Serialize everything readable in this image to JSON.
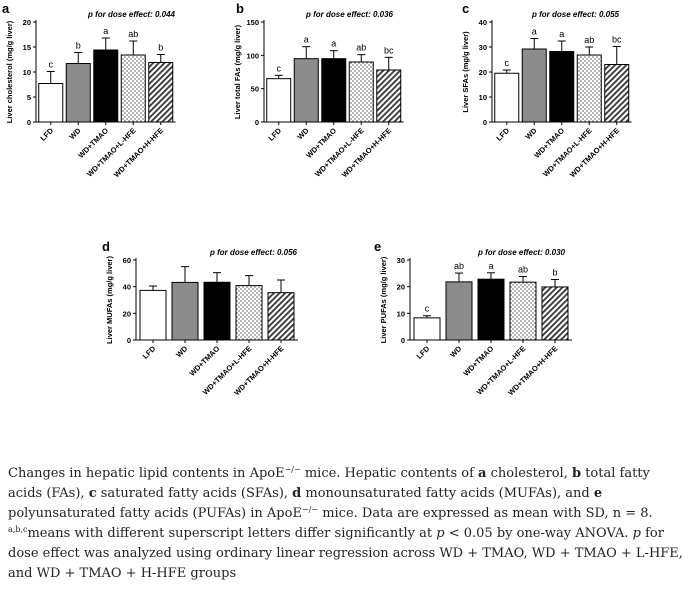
{
  "chart_data": [
    {
      "type": "bar",
      "panel_label": "a",
      "title": "p for dose effect: 0.044",
      "ylabel": "Liver cholesterol (mg/g liver)",
      "ylim": [
        0,
        20
      ],
      "yticks": [
        0,
        5,
        10,
        15,
        20
      ],
      "categories": [
        "LFD",
        "WD",
        "WD+TMAO",
        "WD+TMAO+L-HFE",
        "WD+TMAO+H-HFE"
      ],
      "values": [
        7.7,
        11.7,
        14.4,
        13.4,
        11.9
      ],
      "errors": [
        2.4,
        2.2,
        2.4,
        2.8,
        1.6
      ],
      "letters": [
        "c",
        "b",
        "a",
        "ab",
        "b"
      ]
    },
    {
      "type": "bar",
      "panel_label": "b",
      "title": "p for dose effect: 0.036",
      "ylabel": "Liver total FAs (mg/g liver)",
      "ylim": [
        0,
        150
      ],
      "yticks": [
        0,
        50,
        100,
        150
      ],
      "categories": [
        "LFD",
        "WD",
        "WD+TMAO",
        "WD+TMAO+L-HFE",
        "WD+TMAO+H-HFE"
      ],
      "values": [
        65,
        95,
        95,
        90,
        78
      ],
      "errors": [
        5,
        18,
        12,
        11,
        19
      ],
      "letters": [
        "c",
        "a",
        "a",
        "ab",
        "bc"
      ]
    },
    {
      "type": "bar",
      "panel_label": "c",
      "title": "p for dose effect: 0.055",
      "ylabel": "Liver SFAs (mg/g liver)",
      "ylim": [
        0,
        40
      ],
      "yticks": [
        0,
        10,
        20,
        30,
        40
      ],
      "categories": [
        "LFD",
        "WD",
        "WD+TMAO",
        "WD+TMAO+L-HFE",
        "WD+TMAO+H-HFE"
      ],
      "values": [
        19.5,
        29.2,
        28.2,
        26.8,
        23.0
      ],
      "errors": [
        1.3,
        4.2,
        4.2,
        3.2,
        7.2
      ],
      "letters": [
        "c",
        "a",
        "a",
        "ab",
        "bc"
      ]
    },
    {
      "type": "bar",
      "panel_label": "d",
      "title": "p for dose effect: 0.056",
      "ylabel": "Liver MUFAs (mg/g liver)",
      "ylim": [
        0,
        60
      ],
      "yticks": [
        0,
        20,
        40,
        60
      ],
      "categories": [
        "LFD",
        "WD",
        "WD+TMAO",
        "WD+TMAO+L-HFE",
        "WD+TMAO+H-HFE"
      ],
      "values": [
        37.2,
        43.2,
        43.3,
        40.8,
        35.5
      ],
      "errors": [
        3.3,
        11.8,
        7.2,
        7.5,
        9.5
      ],
      "letters": [
        "",
        "",
        "",
        "",
        ""
      ]
    },
    {
      "type": "bar",
      "panel_label": "e",
      "title": "p for dose effect: 0.030",
      "ylabel": "Liver PUFAs (mg/g liver)",
      "ylim": [
        0,
        30
      ],
      "yticks": [
        0,
        10,
        20,
        30
      ],
      "categories": [
        "LFD",
        "WD",
        "WD+TMAO",
        "WD+TMAO+L-HFE",
        "WD+TMAO+H-HFE"
      ],
      "values": [
        8.3,
        21.8,
        22.8,
        21.7,
        19.9
      ],
      "errors": [
        0.8,
        3.3,
        2.4,
        2.1,
        2.8
      ],
      "letters": [
        "c",
        "ab",
        "a",
        "ab",
        "b"
      ]
    }
  ],
  "caption": {
    "intro": "Changes in hepatic lipid contents in ApoE",
    "sup_ko": "−/−",
    "mid1": " mice. Hepatic contents of ",
    "a": "a",
    "t_a": " cholesterol, ",
    "b": "b",
    "t_b": " total fatty acids (FAs), ",
    "c": "c",
    "t_c": " saturated fatty acids (SFAs), ",
    "d": "d",
    "t_d": " monounsaturated fatty acids (MUFAs), and ",
    "e": "e",
    "t_e": " polyunsaturated fatty acids (PUFAs) in ApoE",
    "sup_ko2": "−/−",
    "t_data": " mice. Data are expressed as mean with SD, n = 8. ",
    "sup_abc": "a,b,c",
    "t_means": "means with different superscript letters differ significantly at ",
    "p1": "p",
    "t_anova": " < 0.05 by one-way ANOVA. ",
    "p2": "p",
    "t_dose": " for dose effect was analyzed using ordinary linear regression across WD + TMAO, WD + TMAO + L-HFE, and WD + TMAO + H-HFE groups"
  },
  "colors": {
    "LFD": "#ffffff",
    "WD": "#8c8c8c",
    "WD+TMAO": "#000000",
    "L-HFE": "dotted",
    "H-HFE": "hatched"
  }
}
